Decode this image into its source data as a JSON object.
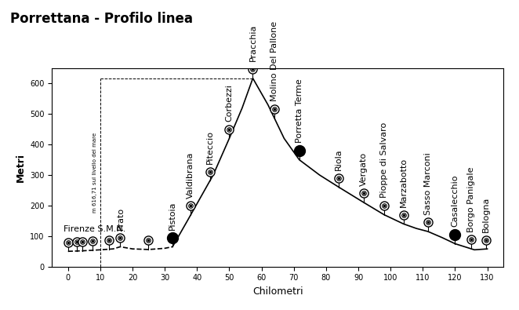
{
  "chart_data": {
    "type": "line",
    "title": "Porrettana - Profilo linea",
    "x_label": "Chilometri",
    "y_label": "Metri",
    "xlim": [
      -5,
      135
    ],
    "xticks": [
      0,
      10,
      20,
      30,
      40,
      50,
      60,
      70,
      80,
      90,
      100,
      110,
      120,
      130
    ],
    "ylim": [
      0,
      650
    ],
    "yticks": [
      0,
      100,
      200,
      300,
      400,
      500,
      600
    ],
    "grid": false,
    "series": [
      {
        "line_style": "dashed",
        "color": "#000000",
        "x": [
          0,
          5,
          10,
          14,
          16.2,
          20,
          25,
          30,
          32.4
        ],
        "values": [
          50,
          52,
          55,
          58,
          65,
          58,
          56,
          60,
          65
        ]
      },
      {
        "line_style": "solid",
        "color": "#000000",
        "x": [
          32.4,
          37,
          45,
          50,
          54,
          57.3,
          62,
          67,
          71.7,
          78,
          84,
          91.7,
          98,
          104,
          108,
          111.6,
          116,
          120,
          126,
          130
        ],
        "values": [
          65,
          150,
          300,
          420,
          520,
          617,
          530,
          420,
          350,
          300,
          260,
          210,
          170,
          140,
          125,
          115,
          95,
          75,
          55,
          58
        ]
      }
    ],
    "stations": [
      {
        "name": "Firenze S.M.N.",
        "km": 0,
        "marker": "ring"
      },
      {
        "name": null,
        "km": 2.7,
        "marker": "ring"
      },
      {
        "name": null,
        "km": 4.5,
        "marker": "ring"
      },
      {
        "name": null,
        "km": 7.7,
        "marker": "ring"
      },
      {
        "name": null,
        "km": 12.7,
        "marker": "ring"
      },
      {
        "name": "Prato",
        "km": 16.2,
        "marker": "ring"
      },
      {
        "name": null,
        "km": 24.9,
        "marker": "ring"
      },
      {
        "name": "Pistoia",
        "km": 32.4,
        "marker": "filled"
      },
      {
        "name": "Valdibrana",
        "km": 38,
        "marker": "ring"
      },
      {
        "name": "Piteccio",
        "km": 44,
        "marker": "ring"
      },
      {
        "name": "Corbezzi",
        "km": 50,
        "marker": "ring"
      },
      {
        "name": "Pracchia",
        "km": 57.3,
        "marker": "ring"
      },
      {
        "name": "Molino Del Pallone",
        "km": 64,
        "marker": "ring"
      },
      {
        "name": "Porretta Terme",
        "km": 71.7,
        "marker": "filled"
      },
      {
        "name": "Riola",
        "km": 84,
        "marker": "ring"
      },
      {
        "name": "Vergato",
        "km": 91.7,
        "marker": "ring"
      },
      {
        "name": "Pioppe di Salvaro",
        "km": 98,
        "marker": "ring"
      },
      {
        "name": "Marzabotto",
        "km": 104,
        "marker": "ring"
      },
      {
        "name": "Sasso Marconi",
        "km": 111.6,
        "marker": "ring"
      },
      {
        "name": "Casalecchio",
        "km": 120,
        "marker": "filled"
      },
      {
        "name": "Borgo Panigale",
        "km": 125,
        "marker": "ring"
      },
      {
        "name": "Bologna",
        "km": 129.5,
        "marker": "ring"
      }
    ],
    "reference": {
      "km": 10,
      "elevation": 616.71,
      "to_km": 57.3,
      "label": "m 616,71 sul livello del mare"
    }
  }
}
